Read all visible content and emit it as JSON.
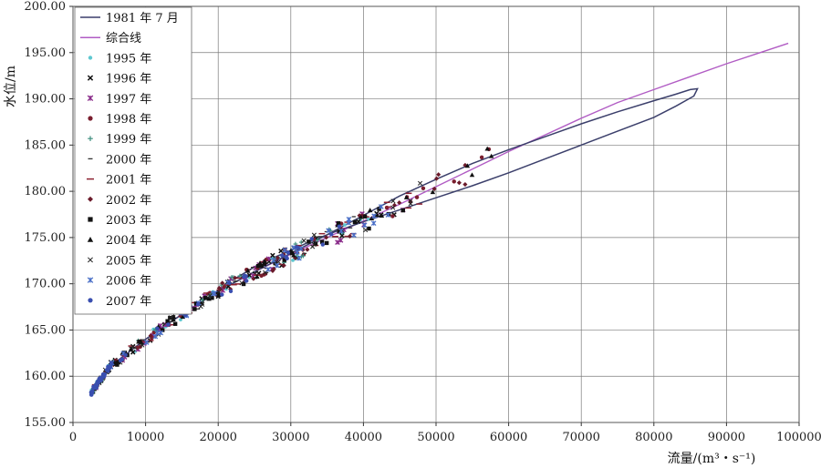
{
  "chart_data": {
    "type": "scatter",
    "xlabel": "流量/(m³・s⁻¹)",
    "ylabel": "水位/m",
    "xlim": [
      0,
      100000
    ],
    "ylim": [
      155,
      200
    ],
    "x_ticks": [
      "0",
      "10000",
      "20000",
      "30000",
      "40000",
      "50000",
      "60000",
      "70000",
      "80000",
      "90000",
      "100000"
    ],
    "y_ticks": [
      "155.00",
      "160.00",
      "165.00",
      "170.00",
      "175.00",
      "180.00",
      "185.00",
      "190.00",
      "195.00",
      "200.00"
    ],
    "grid": true,
    "legend_position": "top-left",
    "colors": {
      "loop_1981": "#3b3f6b",
      "composite": "#b15cc4",
      "1995": "#5ec8d0",
      "1996": "#111111",
      "1997": "#8a2c8a",
      "1998": "#7a1e2e",
      "1999": "#3f8f7f",
      "2000": "#333333",
      "2001": "#8c2030",
      "2002": "#6b1a2a",
      "2003": "#111111",
      "2004": "#111111",
      "2005": "#222222",
      "2006": "#4a6fc7",
      "2007": "#3a4fb0"
    },
    "legend": [
      {
        "key": "loop_1981",
        "label": "1981 年 7 月",
        "marker": "line"
      },
      {
        "key": "composite",
        "label": "综合线",
        "marker": "line"
      },
      {
        "key": "1995",
        "label": "1995 年",
        "marker": "circle-small"
      },
      {
        "key": "1996",
        "label": "1996 年",
        "marker": "x"
      },
      {
        "key": "1997",
        "label": "1997 年",
        "marker": "asterisk"
      },
      {
        "key": "1998",
        "label": "1998 年",
        "marker": "circle"
      },
      {
        "key": "1999",
        "label": "1999 年",
        "marker": "plus"
      },
      {
        "key": "2000",
        "label": "2000 年",
        "marker": "dash"
      },
      {
        "key": "2001",
        "label": "2001 年",
        "marker": "long-dash"
      },
      {
        "key": "2002",
        "label": "2002 年",
        "marker": "diamond"
      },
      {
        "key": "2003",
        "label": "2003 年",
        "marker": "square"
      },
      {
        "key": "2004",
        "label": "2004 年",
        "marker": "triangle"
      },
      {
        "key": "2005",
        "label": "2005 年",
        "marker": "x-thin"
      },
      {
        "key": "2006",
        "label": "2006 年",
        "marker": "asterisk"
      },
      {
        "key": "2007",
        "label": "2007 年",
        "marker": "circle"
      }
    ],
    "lines": {
      "composite": {
        "x": [
          2500,
          5000,
          10000,
          15000,
          20000,
          25000,
          30000,
          35000,
          40000,
          45000,
          50000,
          55000,
          60000,
          65000,
          70000,
          75000,
          80000,
          85000,
          90000,
          95000,
          98500
        ],
        "y": [
          158.2,
          161.0,
          164.0,
          166.7,
          169.2,
          171.3,
          173.2,
          175.0,
          176.8,
          178.6,
          180.5,
          182.4,
          184.3,
          186.1,
          187.9,
          189.6,
          191.0,
          192.4,
          193.8,
          195.1,
          196.0
        ]
      },
      "loop_1981": {
        "x": [
          2500,
          5000,
          10000,
          15000,
          20000,
          25000,
          30000,
          35000,
          40000,
          45000,
          50000,
          55000,
          60000,
          65000,
          70000,
          75000,
          80000,
          83000,
          85000,
          86000,
          85500,
          83000,
          80000,
          75000,
          70000,
          65000,
          60000,
          55000,
          50000,
          45000,
          40000,
          36000,
          33000,
          30000,
          26000,
          22000
        ],
        "y": [
          158.2,
          161.0,
          164.0,
          166.7,
          169.2,
          171.3,
          173.3,
          175.3,
          177.4,
          179.5,
          181.3,
          183.0,
          184.5,
          185.9,
          187.3,
          188.6,
          189.8,
          190.5,
          191.0,
          191.1,
          190.3,
          189.2,
          188.0,
          186.5,
          185.0,
          183.5,
          182.0,
          180.6,
          179.3,
          178.0,
          176.7,
          175.6,
          174.7,
          173.6,
          172.3,
          170.4
        ]
      }
    },
    "scatter_seed": 20070901
  }
}
